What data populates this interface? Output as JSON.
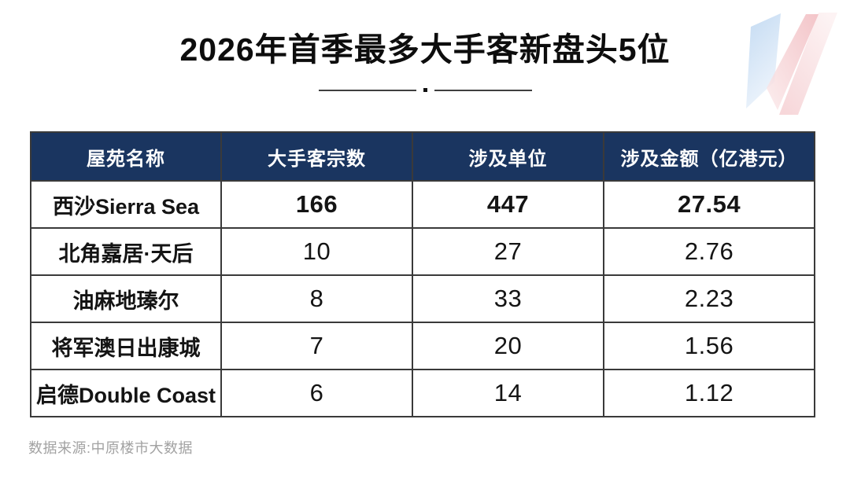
{
  "title": "2026年首季最多大手客新盘头5位",
  "source_note": "数据来源:中原楼市大数据",
  "colors": {
    "header_bg": "#1a3560",
    "header_text": "#ffffff",
    "border": "#3a3a3a",
    "body_text": "#141414",
    "muted_text": "#a2a2a2",
    "divider": "#3f3f3f",
    "logo_blue": "#b9d4f0",
    "logo_blue_light": "#eaf2fb",
    "logo_pink": "#f0b6bb",
    "logo_pink_light": "#fbe9ea"
  },
  "chart_data": {
    "type": "table",
    "title": "2026年首季最多大手客新盘头5位",
    "columns": [
      "屋苑名称",
      "大手客宗数",
      "涉及单位",
      "涉及金额（亿港元）"
    ],
    "rows": [
      [
        "西沙Sierra Sea",
        166,
        447,
        "27.54"
      ],
      [
        "北角嘉居·天后",
        10,
        27,
        "2.76"
      ],
      [
        "油麻地瑧尔",
        8,
        33,
        "2.23"
      ],
      [
        "将军澳日出康城",
        7,
        20,
        "1.56"
      ],
      [
        "启德Double Coast",
        6,
        14,
        "1.12"
      ]
    ],
    "source": "数据来源:中原楼市大数据"
  }
}
